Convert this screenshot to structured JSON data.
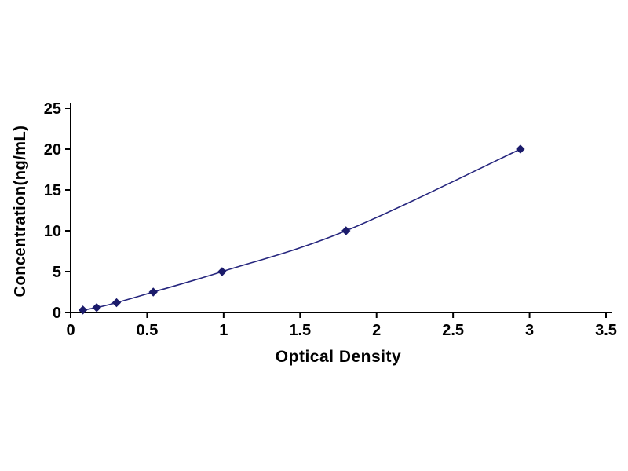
{
  "chart_data": {
    "type": "line",
    "title": "",
    "xlabel": "Optical Density",
    "ylabel": "Concentration(ng/mL)",
    "xlim": [
      0,
      3.5
    ],
    "ylim": [
      0,
      25
    ],
    "x_ticks": [
      0,
      0.5,
      1,
      1.5,
      2,
      2.5,
      3,
      3.5
    ],
    "x_tick_labels": [
      "0",
      "0.5",
      "1",
      "1.5",
      "2",
      "2.5",
      "3",
      "3.5"
    ],
    "y_ticks": [
      0,
      5,
      10,
      15,
      20,
      25
    ],
    "y_tick_labels": [
      "0",
      "5",
      "10",
      "15",
      "20",
      "25"
    ],
    "grid": false,
    "legend": false,
    "series": [
      {
        "name": "standard-curve",
        "marker": "diamond",
        "x": [
          0.08,
          0.17,
          0.3,
          0.54,
          0.99,
          1.8,
          2.94
        ],
        "y": [
          0.3,
          0.6,
          1.2,
          2.5,
          5,
          10,
          20
        ]
      }
    ]
  },
  "colors": {
    "line": "#26267e",
    "marker": "#1b1b6b",
    "axis": "#000000",
    "text": "#000000",
    "background": "#ffffff"
  }
}
